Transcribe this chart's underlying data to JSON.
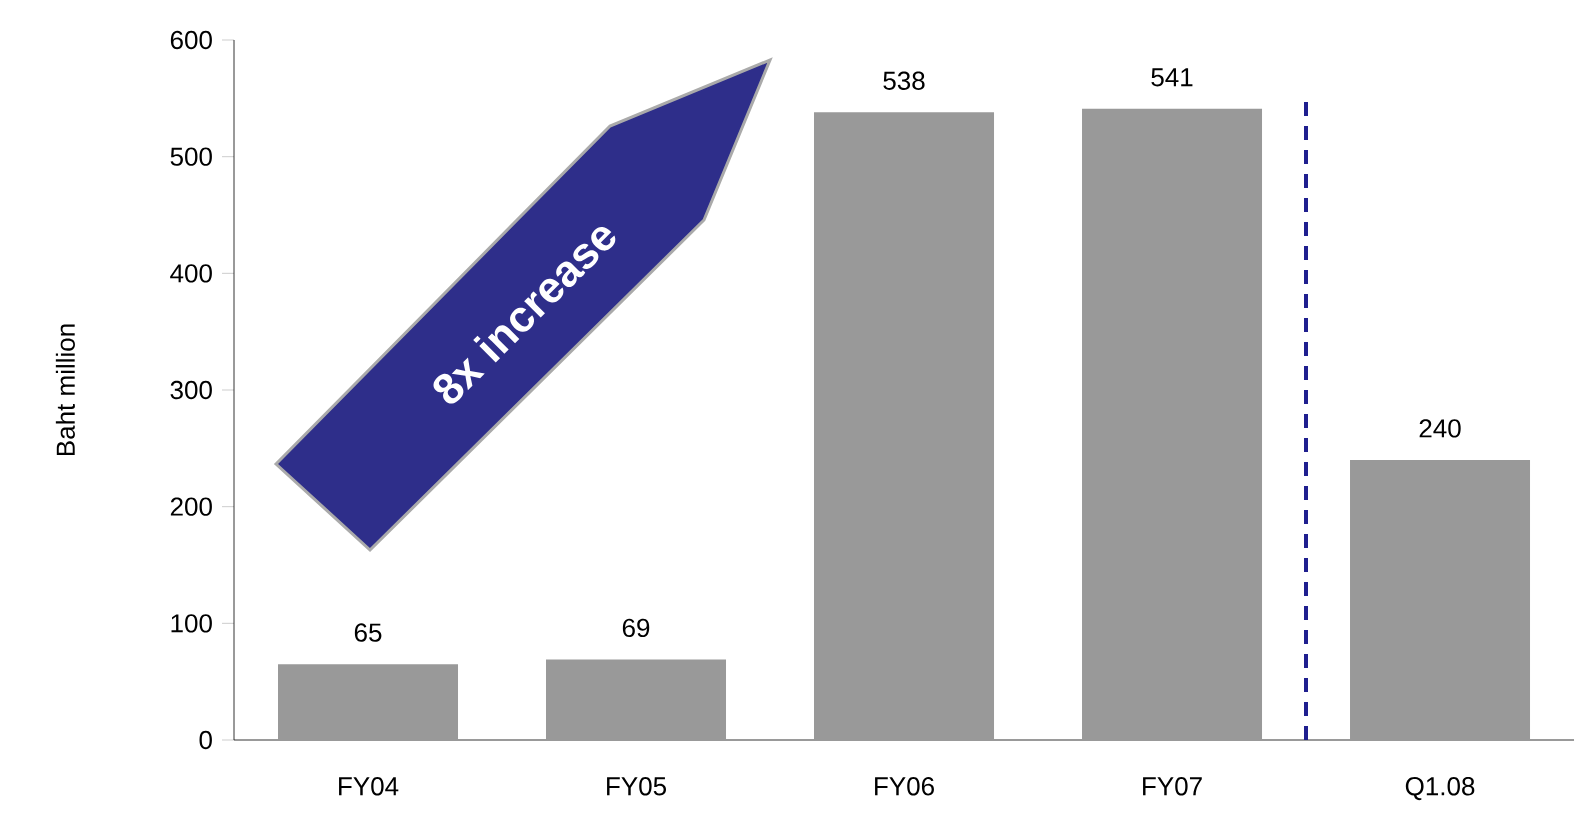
{
  "chart_data": {
    "type": "bar",
    "ylabel": "Baht million",
    "categories": [
      "FY04",
      "FY05",
      "FY06",
      "FY07",
      "Q1.08"
    ],
    "values": [
      65,
      69,
      538,
      541,
      240
    ],
    "color": "#999999",
    "ylim": [
      0,
      600
    ],
    "yticks": [
      0,
      100,
      200,
      300,
      400,
      500,
      600
    ],
    "data_labels": true,
    "annotations": [
      "8x increase"
    ]
  }
}
